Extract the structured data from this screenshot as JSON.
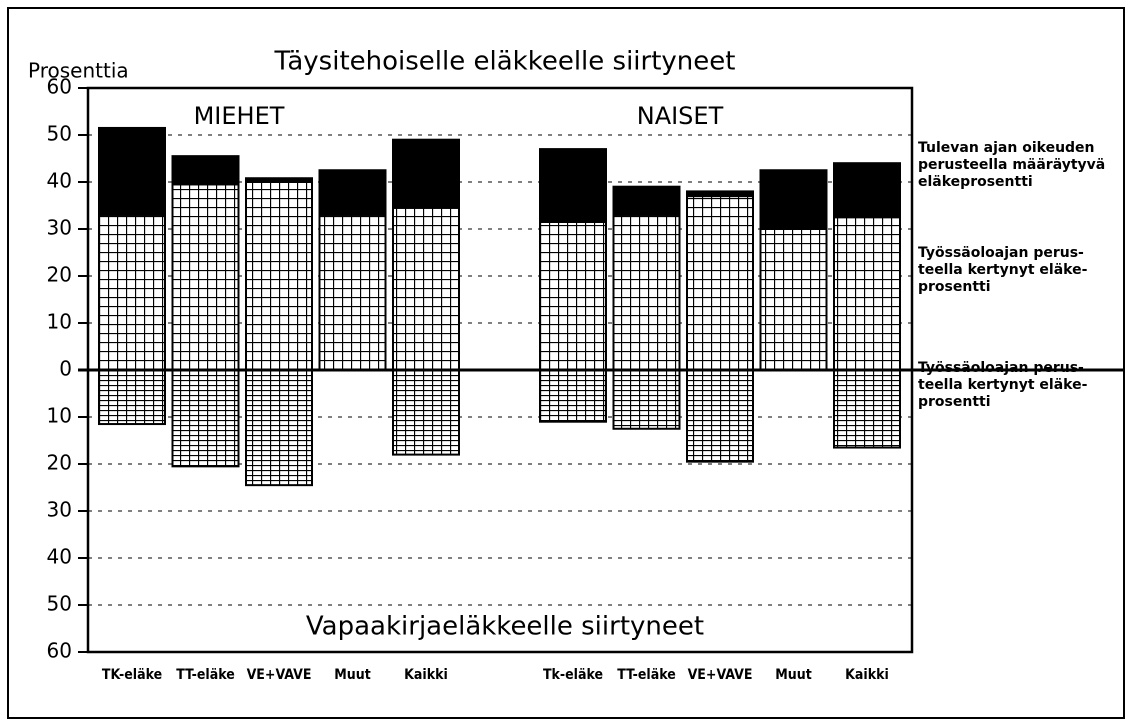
{
  "chart_data": {
    "type": "bar",
    "stacked": true,
    "title": "Täysitehoiselle eläkkeelle siirtyneet",
    "subtitle": "Vapaakirjaeläkkeelle siirtyneet",
    "ylabel": "Prosenttia",
    "groups": [
      {
        "label": "MIEHET",
        "size": 5
      },
      {
        "label": "NAISET",
        "size": 5
      }
    ],
    "categories": [
      "TK-eläke",
      "TT-eläke",
      "VE+VAVE",
      "Muut",
      "Kaikki",
      "Tk-eläke",
      "TT-eläke",
      "VE+VAVE",
      "Muut",
      "Kaikki"
    ],
    "series": [
      {
        "name": "Työssäoloajan perus-\nteella kertynyt eläke-\nprosentti",
        "color": "#000000",
        "pattern": "grid",
        "values": [
          33,
          39.5,
          40,
          33,
          34.5,
          31.5,
          33,
          37,
          30,
          32.5
        ]
      },
      {
        "name": "Tulevan ajan oikeuden\nperusteella määräytyvä\neläkeprosentti",
        "color": "#000000",
        "pattern": "solid",
        "values": [
          18.5,
          6,
          0.8,
          9.5,
          14.5,
          15.5,
          6,
          1,
          12.5,
          11.5
        ]
      },
      {
        "name": "Työssäoloajan perus-\nteella kertynyt eläke-\nprosentti",
        "color": "#000000",
        "pattern": "dense-grid",
        "values": [
          -11.5,
          -20.5,
          -24.5,
          null,
          -18,
          -11,
          -12.5,
          -19.5,
          null,
          -16.5
        ]
      }
    ],
    "ylim": [
      -60,
      60
    ],
    "yticks": [
      {
        "value": -60,
        "label": "60"
      },
      {
        "value": -50,
        "label": "50"
      },
      {
        "value": -40,
        "label": "40"
      },
      {
        "value": -30,
        "label": "30"
      },
      {
        "value": -20,
        "label": "20"
      },
      {
        "value": -10,
        "label": "10"
      },
      0,
      10,
      20,
      30,
      40,
      50,
      60
    ],
    "grid": true
  }
}
